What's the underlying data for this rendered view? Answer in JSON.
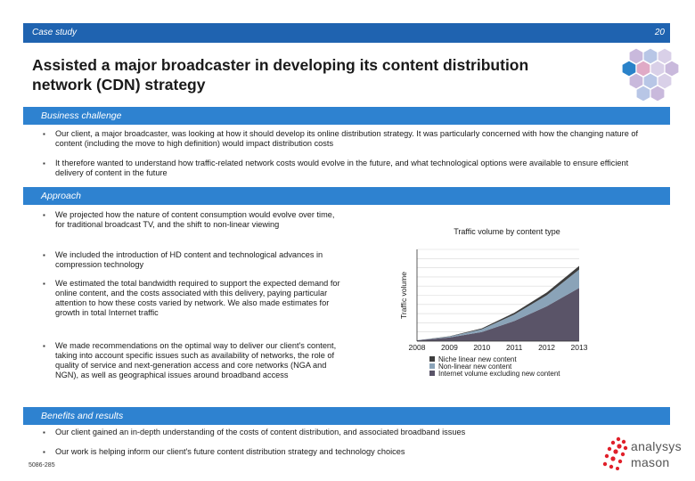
{
  "header": {
    "label": "Case study",
    "page_number": "20"
  },
  "title_line1": "Assisted a major broadcaster in developing its content distribution",
  "title_line2": "network (CDN) strategy",
  "sections": {
    "business": {
      "title": "Business challenge",
      "bullets": [
        "Our client, a major broadcaster, was looking at how it should develop its online distribution strategy. It was particularly concerned with how the changing nature of content (including the move to high definition) would impact distribution costs",
        "It therefore wanted to understand how traffic-related network costs would evolve in the future, and what technological options were available to ensure efficient delivery of content in the future"
      ]
    },
    "approach": {
      "title": "Approach",
      "bullets": [
        "We projected how the nature of content consumption would evolve over time, for traditional broadcast TV, and the shift to non-linear viewing",
        "We included the introduction of HD content and technological advances in compression technology",
        "We estimated the total bandwidth required to support the expected demand for online content, and the costs associated with this delivery, paying particular attention to how these costs varied by network. We also made estimates for growth in total Internet traffic",
        "We made recommendations on the optimal way to deliver our client's content, taking into account specific issues such as availability of networks, the role of quality of service and next-generation access and core networks (NGA and NGN), as well as geographical issues around broadband access"
      ]
    },
    "benefits": {
      "title": "Benefits and results",
      "bullets": [
        "Our client gained an in-depth understanding of the costs of content distribution, and associated broadband issues",
        "Our work is helping inform our client's future content distribution strategy and technology choices"
      ]
    }
  },
  "chart_data": {
    "type": "area",
    "stacked": true,
    "title": "Traffic volume by content type",
    "xlabel": "",
    "ylabel": "Traffic volume",
    "x": [
      "2008",
      "2009",
      "2010",
      "2011",
      "2012",
      "2013"
    ],
    "ylim": [
      0,
      100
    ],
    "grid": true,
    "series": [
      {
        "name": "Internet volume excluding new content",
        "color": "#5a5468",
        "values": [
          1,
          4,
          10,
          22,
          38,
          58
        ]
      },
      {
        "name": "Non-linear new content",
        "color": "#8aa3b8",
        "values": [
          0,
          1,
          3,
          7,
          12,
          20
        ]
      },
      {
        "name": "Niche linear new content",
        "color": "#3d3d3d",
        "values": [
          0,
          0.3,
          1,
          2,
          3,
          4
        ]
      }
    ],
    "legend_order": [
      "Niche linear new content",
      "Non-linear new content",
      "Internet volume excluding new content"
    ]
  },
  "footer_code": "5086-285",
  "logo": {
    "word1": "analysys",
    "word2": "mason"
  },
  "colors": {
    "header_bar": "#1f63b0",
    "section_bar": "#2e82d0",
    "logo_red": "#e0202a"
  }
}
